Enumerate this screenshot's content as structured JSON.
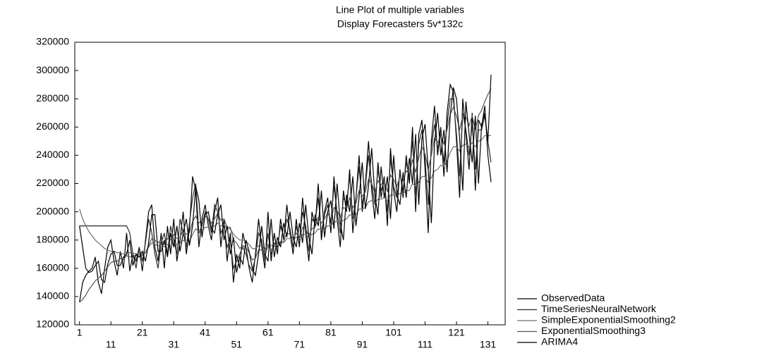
{
  "chart_data": {
    "type": "line",
    "title": "Line Plot of multiple variables",
    "subtitle": "Display Forecasters 5v*132c",
    "x": [
      1,
      2,
      3,
      4,
      5,
      6,
      7,
      8,
      9,
      10,
      11,
      12,
      13,
      14,
      15,
      16,
      17,
      18,
      19,
      20,
      21,
      22,
      23,
      24,
      25,
      26,
      27,
      28,
      29,
      30,
      31,
      32,
      33,
      34,
      35,
      36,
      37,
      38,
      39,
      40,
      41,
      42,
      43,
      44,
      45,
      46,
      47,
      48,
      49,
      50,
      51,
      52,
      53,
      54,
      55,
      56,
      57,
      58,
      59,
      60,
      61,
      62,
      63,
      64,
      65,
      66,
      67,
      68,
      69,
      70,
      71,
      72,
      73,
      74,
      75,
      76,
      77,
      78,
      79,
      80,
      81,
      82,
      83,
      84,
      85,
      86,
      87,
      88,
      89,
      90,
      91,
      92,
      93,
      94,
      95,
      96,
      97,
      98,
      99,
      100,
      101,
      102,
      103,
      104,
      105,
      106,
      107,
      108,
      109,
      110,
      111,
      112,
      113,
      114,
      115,
      116,
      117,
      118,
      119,
      120,
      121,
      122,
      123,
      124,
      125,
      126,
      127,
      128,
      129,
      130,
      131,
      132
    ],
    "series": [
      {
        "name": "ObservedData",
        "color": "#000000",
        "values": [
          136000,
          150000,
          155000,
          158000,
          160000,
          168000,
          150000,
          142000,
          160000,
          175000,
          180000,
          165000,
          155000,
          172000,
          160000,
          185000,
          158000,
          170000,
          165000,
          175000,
          158000,
          180000,
          200000,
          205000,
          175000,
          165000,
          185000,
          160000,
          190000,
          170000,
          195000,
          165000,
          180000,
          200000,
          170000,
          188000,
          225000,
          215000,
          175000,
          195000,
          205000,
          190000,
          180000,
          200000,
          210000,
          175000,
          195000,
          165000,
          185000,
          150000,
          170000,
          160000,
          185000,
          175000,
          160000,
          150000,
          170000,
          195000,
          175000,
          160000,
          200000,
          165000,
          185000,
          170000,
          195000,
          180000,
          205000,
          185000,
          170000,
          195000,
          175000,
          210000,
          185000,
          165000,
          200000,
          190000,
          220000,
          180000,
          200000,
          210000,
          185000,
          225000,
          195000,
          175000,
          215000,
          200000,
          230000,
          185000,
          210000,
          240000,
          200000,
          220000,
          250000,
          215000,
          195000,
          235000,
          210000,
          225000,
          190000,
          245000,
          215000,
          200000,
          230000,
          210000,
          240000,
          220000,
          260000,
          200000,
          255000,
          265000,
          230000,
          185000,
          250000,
          275000,
          240000,
          260000,
          225000,
          270000,
          290000,
          285000,
          250000,
          210000,
          280000,
          255000,
          230000,
          270000,
          215000,
          265000,
          260000,
          275000,
          240000,
          221000
        ]
      },
      {
        "name": "TimeSeriesNeuralNetwork",
        "color": "#2a2a2a",
        "values": [
          190000,
          190000,
          190000,
          190000,
          190000,
          190000,
          190000,
          190000,
          190000,
          190000,
          190000,
          190000,
          190000,
          190000,
          190000,
          190000,
          185000,
          170000,
          160000,
          175000,
          165000,
          178000,
          195000,
          185000,
          170000,
          160000,
          178000,
          185000,
          170000,
          190000,
          180000,
          170000,
          195000,
          185000,
          175000,
          192000,
          210000,
          220000,
          185000,
          190000,
          200000,
          195000,
          185000,
          205000,
          200000,
          185000,
          190000,
          175000,
          180000,
          160000,
          165000,
          170000,
          175000,
          170000,
          162000,
          158000,
          168000,
          185000,
          180000,
          165000,
          185000,
          170000,
          178000,
          175000,
          190000,
          182000,
          195000,
          188000,
          175000,
          190000,
          180000,
          200000,
          190000,
          172000,
          195000,
          192000,
          210000,
          185000,
          198000,
          205000,
          192000,
          218000,
          200000,
          185000,
          210000,
          205000,
          225000,
          195000,
          210000,
          232000,
          205000,
          218000,
          240000,
          220000,
          205000,
          230000,
          215000,
          222000,
          200000,
          238000,
          218000,
          210000,
          228000,
          215000,
          235000,
          225000,
          250000,
          212000,
          248000,
          258000,
          238000,
          205000,
          245000,
          262000,
          245000,
          255000,
          235000,
          262000,
          280000,
          280000,
          255000,
          225000,
          270000,
          258000,
          240000,
          262000,
          230000,
          258000,
          258000,
          268000,
          250000,
          235000
        ]
      },
      {
        "name": "SimpleExponentialSmoothing2",
        "color": "#6e6e6e",
        "values": [
          202000,
          195000,
          190000,
          186000,
          183000,
          180000,
          178000,
          176000,
          174000,
          173000,
          172000,
          172000,
          171000,
          171000,
          170000,
          171000,
          171000,
          171000,
          170000,
          171000,
          170000,
          171000,
          175000,
          178000,
          177000,
          176000,
          177000,
          175000,
          177000,
          176000,
          178000,
          177000,
          178000,
          180000,
          178000,
          179000,
          184000,
          188000,
          186000,
          187000,
          189000,
          189000,
          188000,
          190000,
          192000,
          190000,
          191000,
          188000,
          188000,
          184000,
          182000,
          180000,
          180000,
          179000,
          177000,
          174000,
          174000,
          176000,
          176000,
          174000,
          177000,
          176000,
          177000,
          176000,
          178000,
          178000,
          181000,
          181000,
          180000,
          182000,
          181000,
          184000,
          184000,
          182000,
          184000,
          185000,
          188000,
          187000,
          188000,
          190000,
          190000,
          193000,
          193000,
          192000,
          194000,
          195000,
          198000,
          197000,
          198000,
          202000,
          202000,
          203000,
          207000,
          208000,
          206000,
          209000,
          209000,
          210000,
          208000,
          212000,
          212000,
          211000,
          213000,
          213000,
          215000,
          215000,
          220000,
          218000,
          221000,
          225000,
          225000,
          221000,
          224000,
          229000,
          230000,
          233000,
          232000,
          236000,
          242000,
          246000,
          246000,
          243000,
          247000,
          248000,
          246000,
          249000,
          246000,
          250000,
          251000,
          254000,
          254000,
          254000
        ]
      },
      {
        "name": "ExponentialSmoothing3",
        "color": "#555555",
        "values": [
          136000,
          138000,
          141000,
          145000,
          148000,
          151000,
          153000,
          155000,
          158000,
          161000,
          164000,
          165000,
          165000,
          167000,
          166000,
          169000,
          168000,
          169000,
          169000,
          170000,
          169000,
          171000,
          176000,
          181000,
          180000,
          178000,
          180000,
          177000,
          181000,
          180000,
          184000,
          181000,
          182000,
          187000,
          184000,
          185000,
          193000,
          197000,
          192000,
          194000,
          197000,
          195000,
          192000,
          195000,
          199000,
          194000,
          195000,
          189000,
          189000,
          180000,
          178000,
          174000,
          176000,
          175000,
          171000,
          166000,
          167000,
          173000,
          173000,
          169000,
          176000,
          173000,
          176000,
          174000,
          179000,
          179000,
          185000,
          184000,
          181000,
          185000,
          182000,
          189000,
          188000,
          183000,
          188000,
          189000,
          196000,
          192000,
          195000,
          199000,
          195000,
          203000,
          201000,
          196000,
          203000,
          202000,
          210000,
          203000,
          206000,
          215000,
          211000,
          214000,
          223000,
          220000,
          214000,
          222000,
          219000,
          222000,
          214000,
          226000,
          223000,
          218000,
          225000,
          222000,
          229000,
          227000,
          237000,
          228000,
          238000,
          246000,
          241000,
          230000,
          240000,
          252000,
          249000,
          254000,
          248000,
          258000,
          269000,
          274000,
          268000,
          258000,
          268000,
          267000,
          261000,
          268000,
          258000,
          268000,
          272000,
          278000,
          283000,
          287000
        ]
      },
      {
        "name": "ARIMA4",
        "color": "#000000",
        "values": [
          190000,
          175000,
          160000,
          157000,
          158000,
          162000,
          165000,
          152000,
          150000,
          163000,
          170000,
          172000,
          162000,
          162000,
          168000,
          170000,
          180000,
          162000,
          170000,
          168000,
          172000,
          165000,
          178000,
          198000,
          198000,
          172000,
          172000,
          180000,
          168000,
          185000,
          175000,
          190000,
          172000,
          185000,
          195000,
          176000,
          190000,
          218000,
          208000,
          182000,
          198000,
          200000,
          188000,
          185000,
          198000,
          205000,
          180000,
          190000,
          170000,
          182000,
          157000,
          168000,
          163000,
          180000,
          172000,
          160000,
          155000,
          170000,
          190000,
          170000,
          165000,
          195000,
          168000,
          182000,
          175000,
          192000,
          182000,
          200000,
          182000,
          175000,
          192000,
          178000,
          205000,
          182000,
          170000,
          198000,
          190000,
          215000,
          182000,
          200000,
          208000,
          188000,
          220000,
          192000,
          180000,
          212000,
          200000,
          225000,
          190000,
          210000,
          235000,
          202000,
          218000,
          245000,
          212000,
          198000,
          232000,
          210000,
          225000,
          195000,
          240000,
          212000,
          205000,
          228000,
          210000,
          238000,
          220000,
          255000,
          205000,
          252000,
          262000,
          230000,
          192000,
          248000,
          270000,
          240000,
          258000,
          228000,
          268000,
          288000,
          280000,
          252000,
          215000,
          278000,
          255000,
          235000,
          268000,
          220000,
          262000,
          270000,
          250000,
          297000
        ]
      }
    ],
    "xlim": [
      -0.5,
      136.5
    ],
    "xticks": [
      1,
      11,
      21,
      31,
      41,
      51,
      61,
      71,
      81,
      91,
      101,
      111,
      121,
      131
    ],
    "ylim": [
      120000,
      320000
    ],
    "yticks": [
      120000,
      140000,
      160000,
      180000,
      200000,
      220000,
      240000,
      260000,
      280000,
      300000,
      320000
    ],
    "grid": false,
    "legend": "lower right"
  }
}
